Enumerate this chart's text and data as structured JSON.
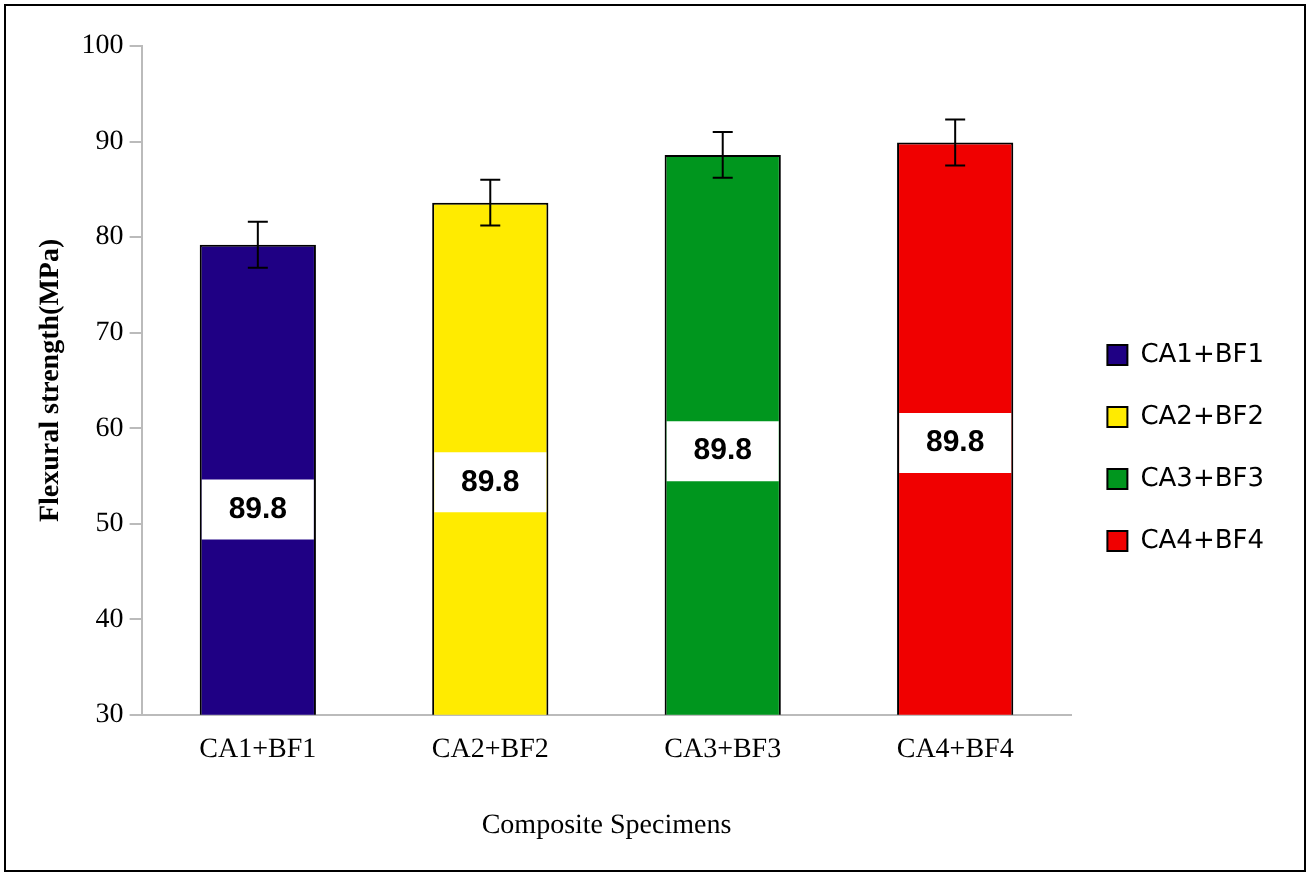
{
  "chart_data": {
    "type": "bar",
    "xlabel": "Composite Specimens",
    "ylabel": "Flexural strength(MPa)",
    "categories": [
      "CA1+BF1",
      "CA2+BF2",
      "CA3+BF3",
      "CA4+BF4"
    ],
    "series": [
      {
        "name": "CA1+BF1",
        "color": "#1f0084",
        "values": [
          79.2,
          null,
          null,
          null
        ],
        "errors": [
          2.4,
          null,
          null,
          null
        ]
      },
      {
        "name": "CA2+BF2",
        "color": "#ffeb00",
        "values": [
          null,
          83.6,
          null,
          null
        ],
        "errors": [
          null,
          2.4,
          null,
          null
        ]
      },
      {
        "name": "CA3+BF3",
        "color": "#00961e",
        "values": [
          null,
          null,
          88.6,
          null
        ],
        "errors": [
          null,
          null,
          2.4,
          null
        ]
      },
      {
        "name": "CA4+BF4",
        "color": "#f00000",
        "values": [
          null,
          null,
          null,
          89.9
        ],
        "errors": [
          null,
          null,
          null,
          2.4
        ]
      }
    ],
    "annotations": [
      "89.8",
      "89.8",
      "89.8",
      "89.8"
    ],
    "ylim": [
      30,
      100
    ],
    "yticks": [
      30,
      40,
      50,
      60,
      70,
      80,
      90,
      100
    ],
    "grid": false,
    "legend": "right"
  }
}
